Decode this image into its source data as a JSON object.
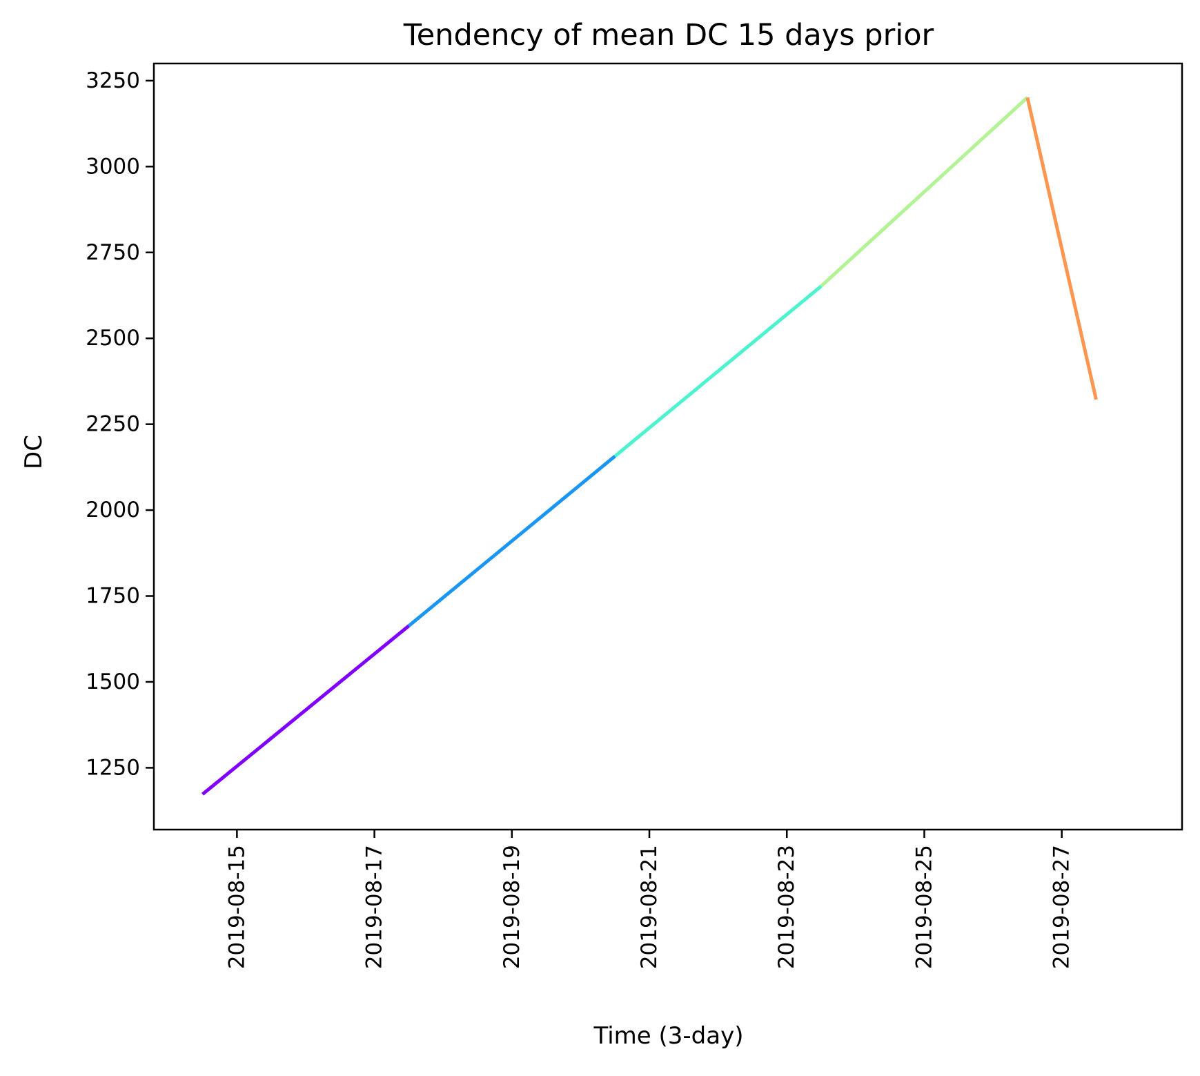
{
  "chart_data": {
    "type": "line",
    "title": "Tendency of mean DC 15 days prior",
    "xlabel": "Time (3-day)",
    "ylabel": "DC",
    "x_ticks": [
      "2019-08-15",
      "2019-08-17",
      "2019-08-19",
      "2019-08-21",
      "2019-08-23",
      "2019-08-25",
      "2019-08-27"
    ],
    "y_ticks": [
      "1250",
      "1500",
      "1750",
      "2000",
      "2250",
      "2500",
      "2750",
      "3000",
      "3250"
    ],
    "xlim": [
      "2019-08-13 19:00",
      "2019-08-28 18:00"
    ],
    "ylim": [
      1070,
      3300
    ],
    "grid": false,
    "segments": [
      {
        "color": "#8000ff",
        "x": [
          "2019-08-14 12:00",
          "2019-08-17 12:00"
        ],
        "y": [
          1173,
          1663
        ]
      },
      {
        "color": "#1996f3",
        "x": [
          "2019-08-17 12:00",
          "2019-08-20 12:00"
        ],
        "y": [
          1663,
          2157
        ]
      },
      {
        "color": "#4df3ce",
        "x": [
          "2019-08-20 12:00",
          "2019-08-23 12:00"
        ],
        "y": [
          2157,
          2652
        ]
      },
      {
        "color": "#b2f396",
        "x": [
          "2019-08-23 12:00",
          "2019-08-26 12:00"
        ],
        "y": [
          2652,
          3201
        ]
      },
      {
        "color": "#ff964f",
        "x": [
          "2019-08-26 12:00",
          "2019-08-27 12:00"
        ],
        "y": [
          3201,
          2322
        ]
      }
    ]
  }
}
